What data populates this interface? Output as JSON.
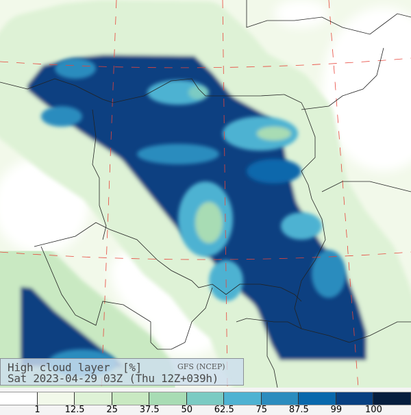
{
  "title": {
    "field": "High cloud layer  [%]",
    "source": "GFS (NCEP)",
    "valid": "Sat 2023-04-29 03Z (Thu 12Z+039h)"
  },
  "legend": {
    "colors": [
      "#ffffff",
      "#f2f9ea",
      "#def2d6",
      "#c9e9c2",
      "#a8dcb4",
      "#7bcbc3",
      "#4eb2d2",
      "#2b8cbe",
      "#0868ac",
      "#084081",
      "#061e3e"
    ],
    "labels": [
      "1",
      "12.5",
      "25",
      "37.5",
      "50",
      "62.5",
      "75",
      "87.5",
      "99",
      "100"
    ]
  }
}
